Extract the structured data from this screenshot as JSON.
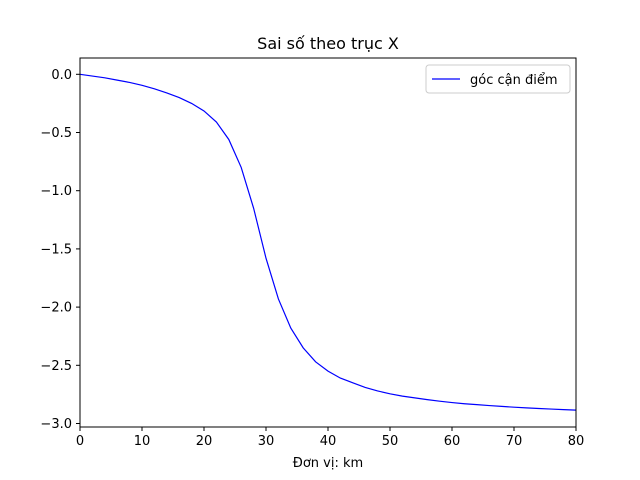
{
  "chart_data": {
    "type": "line",
    "title": "Sai số theo trục X",
    "xlabel": "Đơn vị: km",
    "ylabel": "",
    "xlim": [
      0,
      80
    ],
    "ylim": [
      -3.03,
      0.14
    ],
    "xticks": [
      0,
      10,
      20,
      30,
      40,
      50,
      60,
      70,
      80
    ],
    "xtick_labels": [
      "0",
      "10",
      "20",
      "30",
      "40",
      "50",
      "60",
      "70",
      "80"
    ],
    "yticks": [
      0.0,
      -0.5,
      -1.0,
      -1.5,
      -2.0,
      -2.5,
      -3.0
    ],
    "ytick_labels": [
      "0.0",
      "−0.5",
      "−1.0",
      "−1.5",
      "−2.0",
      "−2.5",
      "−3.0"
    ],
    "grid": false,
    "legend_position": "top-right",
    "series": [
      {
        "name": "góc cận điểm",
        "color": "#0000ff",
        "x": [
          0,
          2,
          4,
          6,
          8,
          10,
          12,
          14,
          16,
          18,
          20,
          22,
          24,
          26,
          28,
          30,
          32,
          34,
          36,
          38,
          40,
          42,
          44,
          46,
          48,
          50,
          52,
          54,
          56,
          58,
          60,
          62,
          64,
          66,
          68,
          70,
          72,
          74,
          76,
          78,
          80
        ],
        "y": [
          0.0,
          -0.015,
          -0.03,
          -0.05,
          -0.07,
          -0.095,
          -0.125,
          -0.16,
          -0.2,
          -0.25,
          -0.315,
          -0.41,
          -0.56,
          -0.8,
          -1.15,
          -1.58,
          -1.93,
          -2.18,
          -2.35,
          -2.47,
          -2.55,
          -2.61,
          -2.65,
          -2.69,
          -2.72,
          -2.745,
          -2.765,
          -2.78,
          -2.795,
          -2.808,
          -2.82,
          -2.83,
          -2.838,
          -2.846,
          -2.853,
          -2.86,
          -2.866,
          -2.871,
          -2.876,
          -2.881,
          -2.885
        ]
      }
    ]
  }
}
